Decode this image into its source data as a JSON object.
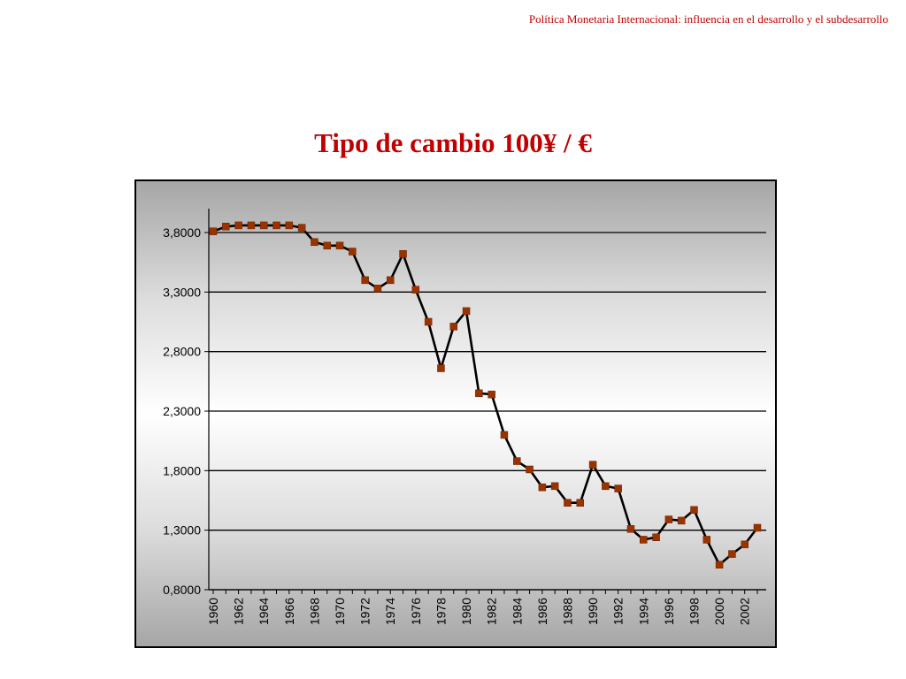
{
  "header": {
    "text": "Política Monetaria Internacional: influencia en el desarrollo y el subdesarrollo"
  },
  "chart_data": {
    "type": "line",
    "title": "Tipo de cambio 100¥ / €",
    "xlabel": "",
    "ylabel": "",
    "ylim": [
      0.8,
      4.2
    ],
    "y_ticks": [
      "0,8000",
      "1,3000",
      "1,8000",
      "2,3000",
      "2,8000",
      "3,3000",
      "3,8000"
    ],
    "y_tick_values": [
      0.8,
      1.3,
      1.8,
      2.3,
      2.8,
      3.3,
      3.8
    ],
    "x_tick_labels": [
      "1960",
      "1962",
      "1964",
      "1966",
      "1968",
      "1970",
      "1972",
      "1974",
      "1976",
      "1978",
      "1980",
      "1982",
      "1984",
      "1986",
      "1988",
      "1990",
      "1992",
      "1994",
      "1996",
      "1998",
      "2000",
      "2002"
    ],
    "grid": "horizontal",
    "legend": "none",
    "colors": {
      "line": "#000000",
      "marker": "#993300",
      "title": "#c00000"
    },
    "series": [
      {
        "x": [
          1960,
          1961,
          1962,
          1963,
          1964,
          1965,
          1966,
          1967,
          1968,
          1969,
          1970,
          1971,
          1972,
          1973,
          1974,
          1975,
          1976,
          1977,
          1978,
          1979,
          1980,
          1981,
          1982,
          1983,
          1984,
          1985,
          1986,
          1987,
          1988,
          1989,
          1990,
          1991,
          1992,
          1993,
          1994,
          1995,
          1996,
          1997,
          1998,
          1999,
          2000,
          2001,
          2002,
          2003
        ],
        "values": [
          3.81,
          3.85,
          3.86,
          3.86,
          3.86,
          3.86,
          3.86,
          3.84,
          3.72,
          3.69,
          3.69,
          3.64,
          3.4,
          3.33,
          3.4,
          3.62,
          3.32,
          3.05,
          2.66,
          3.01,
          3.14,
          2.45,
          2.44,
          2.1,
          1.88,
          1.81,
          1.66,
          1.67,
          1.53,
          1.53,
          1.85,
          1.67,
          1.65,
          1.31,
          1.22,
          1.24,
          1.39,
          1.38,
          1.47,
          1.22,
          1.01,
          1.1,
          1.18,
          1.32
        ]
      }
    ]
  }
}
